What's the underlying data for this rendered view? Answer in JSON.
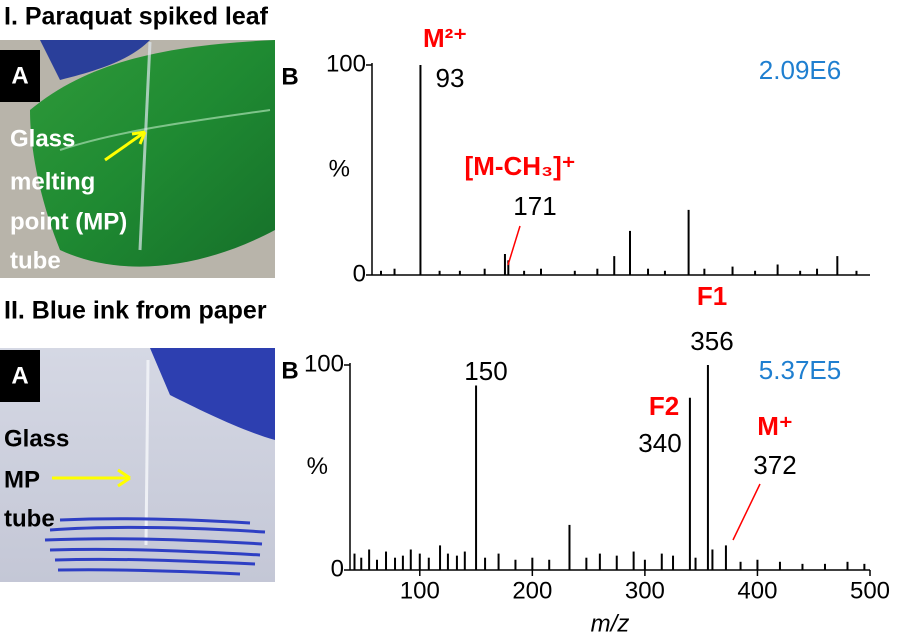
{
  "panels": [
    {
      "title": "I. Paraquat spiked leaf",
      "photo_label": "A",
      "caption": [
        "Glass",
        "melting",
        "point (MP)",
        "tube"
      ]
    },
    {
      "title": "II. Blue ink from paper",
      "photo_label": "A",
      "caption": [
        "Glass",
        "MP",
        "tube"
      ]
    }
  ],
  "chart_data": [
    {
      "type": "spectrum",
      "panel_label": "B",
      "intensity": "2.09E6",
      "ylabel": "%",
      "color": "#000000",
      "label_color": "#000000",
      "annotation_color": "#ff0000",
      "intensity_color": "#1f7fd0",
      "xlim": [
        50,
        492
      ],
      "ylim": [
        0,
        100
      ],
      "yticks": [
        0,
        100
      ],
      "x": [
        58,
        70,
        93,
        110,
        128,
        150,
        168,
        171,
        185,
        200,
        230,
        250,
        265,
        279,
        295,
        310,
        331,
        345,
        370,
        390,
        410,
        430,
        445,
        463,
        480
      ],
      "values": [
        2,
        3,
        100,
        2,
        2,
        3,
        10,
        7,
        2,
        3,
        2,
        3,
        9,
        21,
        3,
        2,
        31,
        3,
        4,
        2,
        5,
        2,
        3,
        9,
        2
      ],
      "x_labels": [
        null,
        null,
        "93",
        null,
        null,
        null,
        null,
        "171",
        null,
        null,
        null,
        null,
        null,
        null,
        null,
        null,
        null,
        null,
        null,
        null,
        null,
        null,
        null,
        null,
        null
      ],
      "annotations": [
        null,
        null,
        "M²⁺",
        null,
        null,
        null,
        null,
        "[M-CH₃]⁺",
        null,
        null,
        null,
        null,
        null,
        null,
        null,
        null,
        null,
        null,
        null,
        null,
        null,
        null,
        null,
        null,
        null
      ]
    },
    {
      "type": "spectrum",
      "panel_label": "B",
      "intensity": "5.37E5",
      "ylabel": "%",
      "xlabel": "m/z",
      "color": "#000000",
      "label_color": "#000000",
      "annotation_color": "#ff0000",
      "intensity_color": "#1f7fd0",
      "xlim": [
        38,
        500
      ],
      "ylim": [
        0,
        100
      ],
      "yticks": [
        0,
        100
      ],
      "xticks": [
        100,
        200,
        300,
        400,
        500
      ],
      "x": [
        42,
        48,
        55,
        62,
        70,
        78,
        85,
        92,
        100,
        108,
        118,
        125,
        133,
        140,
        150,
        158,
        170,
        185,
        200,
        215,
        233,
        248,
        260,
        275,
        290,
        300,
        315,
        325,
        340,
        345,
        356,
        360,
        372,
        385,
        400,
        420,
        440,
        460,
        480,
        495
      ],
      "values": [
        8,
        6,
        10,
        5,
        9,
        6,
        7,
        10,
        8,
        6,
        12,
        8,
        7,
        9,
        90,
        6,
        8,
        5,
        6,
        5,
        22,
        6,
        8,
        7,
        9,
        5,
        8,
        7,
        84,
        6,
        100,
        10,
        12,
        4,
        5,
        4,
        3,
        3,
        4,
        3
      ],
      "x_labels": [
        null,
        null,
        null,
        null,
        null,
        null,
        null,
        null,
        null,
        null,
        null,
        null,
        null,
        null,
        "150",
        null,
        null,
        null,
        null,
        null,
        null,
        null,
        null,
        null,
        null,
        null,
        null,
        null,
        "340",
        null,
        "356",
        null,
        "372",
        null,
        null,
        null,
        null,
        null,
        null,
        null
      ],
      "annotations": [
        null,
        null,
        null,
        null,
        null,
        null,
        null,
        null,
        null,
        null,
        null,
        null,
        null,
        null,
        null,
        null,
        null,
        null,
        null,
        null,
        null,
        null,
        null,
        null,
        null,
        null,
        null,
        null,
        "F2",
        null,
        "F1",
        null,
        "M⁺",
        null,
        null,
        null,
        null,
        null,
        null,
        null
      ]
    }
  ]
}
